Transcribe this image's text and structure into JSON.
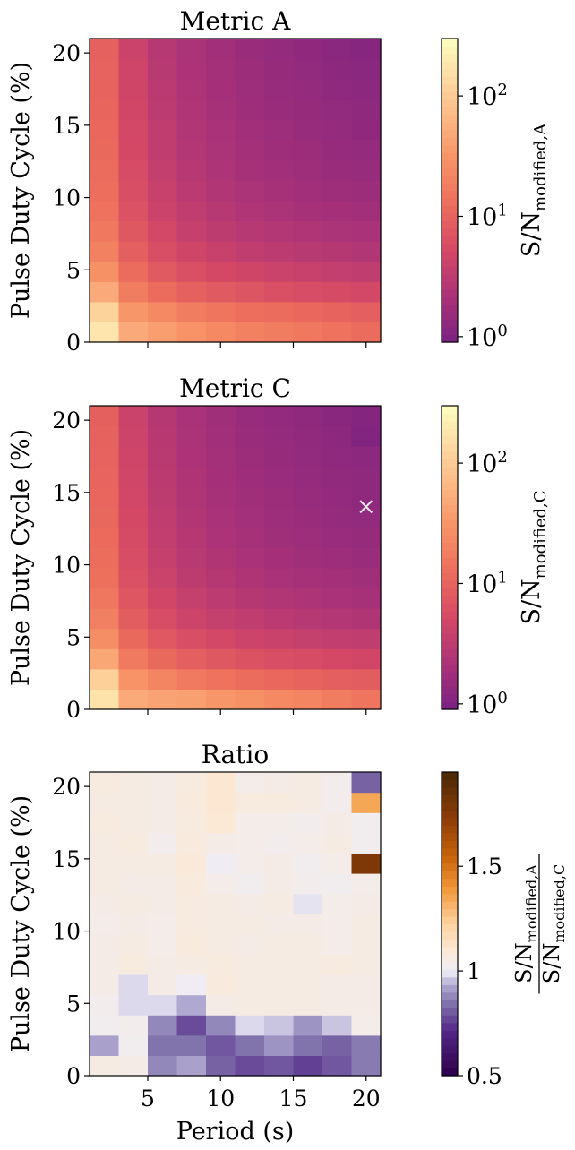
{
  "chart_data": [
    {
      "type": "heatmap",
      "title": "Metric A",
      "ylabel": "Pulse Duty Cycle (%)",
      "xlabel": "",
      "x": [
        1,
        3,
        5,
        7,
        9,
        11,
        13,
        15,
        17,
        19,
        21
      ],
      "y": [
        0,
        1.4,
        2.8,
        4.2,
        5.6,
        7,
        8.4,
        9.8,
        11.2,
        12.6,
        14,
        15.4,
        16.8,
        18.2,
        19.6,
        21
      ],
      "xlim": [
        1,
        21
      ],
      "ylim": [
        0,
        21
      ],
      "yticks": [
        0,
        5,
        10,
        15,
        20
      ],
      "xticks": [
        5,
        10,
        15,
        20
      ],
      "xticklabels_visible": false,
      "colorbar": {
        "label_main": "S/N",
        "label_sub": "modified,A",
        "scale": "log",
        "range": [
          0.9,
          300
        ],
        "ticks": [
          {
            "value": 1,
            "base": "10",
            "exp": "0"
          },
          {
            "value": 10,
            "base": "10",
            "exp": "1"
          },
          {
            "value": 100,
            "base": "10",
            "exp": "2"
          }
        ],
        "colormap": "magma"
      },
      "z": [
        [
          180,
          50,
          38,
          30,
          24,
          20,
          18,
          16,
          14,
          12
        ],
        [
          120,
          32,
          24,
          18,
          15,
          13,
          12,
          11,
          10,
          9
        ],
        [
          50,
          18,
          12,
          9.5,
          8,
          7,
          6.2,
          5.8,
          5.4,
          5
        ],
        [
          28,
          12,
          8,
          6.2,
          5.2,
          4.6,
          4.2,
          3.9,
          3.6,
          3.4
        ],
        [
          20,
          9,
          6,
          4.6,
          3.9,
          3.4,
          3.1,
          2.9,
          2.7,
          2.5
        ],
        [
          16,
          7.5,
          5,
          3.8,
          3.2,
          2.8,
          2.6,
          2.4,
          2.2,
          2.1
        ],
        [
          14,
          6.5,
          4.3,
          3.3,
          2.8,
          2.4,
          2.2,
          2.05,
          1.95,
          1.85
        ],
        [
          13,
          6,
          3.9,
          3,
          2.5,
          2.2,
          2,
          1.85,
          1.75,
          1.65
        ],
        [
          12,
          5.5,
          3.6,
          2.8,
          2.3,
          2.05,
          1.85,
          1.75,
          1.6,
          1.55
        ],
        [
          11.5,
          5.2,
          3.4,
          2.6,
          2.2,
          1.9,
          1.75,
          1.65,
          1.5,
          1.45
        ],
        [
          11,
          5,
          3.3,
          2.5,
          2.1,
          1.85,
          1.7,
          1.55,
          1.45,
          1.35
        ],
        [
          10.5,
          4.8,
          3.1,
          2.4,
          2,
          1.75,
          1.6,
          1.5,
          1.4,
          1.3
        ],
        [
          10,
          4.6,
          3,
          2.3,
          1.95,
          1.7,
          1.55,
          1.45,
          1.3,
          1.25
        ],
        [
          9.8,
          4.5,
          2.9,
          2.25,
          1.9,
          1.65,
          1.5,
          1.4,
          1.25,
          1.2
        ],
        [
          9.5,
          4.3,
          2.8,
          2.2,
          1.85,
          1.6,
          1.45,
          1.35,
          1.2,
          1.12
        ]
      ]
    },
    {
      "type": "heatmap",
      "title": "Metric C",
      "ylabel": "Pulse Duty Cycle (%)",
      "xlabel": "",
      "x": [
        1,
        3,
        5,
        7,
        9,
        11,
        13,
        15,
        17,
        19,
        21
      ],
      "y": [
        0,
        1.4,
        2.8,
        4.2,
        5.6,
        7,
        8.4,
        9.8,
        11.2,
        12.6,
        14,
        15.4,
        16.8,
        18.2,
        19.6,
        21
      ],
      "xlim": [
        1,
        21
      ],
      "ylim": [
        0,
        21
      ],
      "yticks": [
        0,
        5,
        10,
        15,
        20
      ],
      "xticks": [
        5,
        10,
        15,
        20
      ],
      "xticklabels_visible": false,
      "marker": {
        "symbol": "×",
        "x": 20,
        "y": 14
      },
      "colorbar": {
        "label_main": "S/N",
        "label_sub": "modified,C",
        "scale": "log",
        "range": [
          0.9,
          300
        ],
        "ticks": [
          {
            "value": 1,
            "base": "10",
            "exp": "0"
          },
          {
            "value": 10,
            "base": "10",
            "exp": "1"
          },
          {
            "value": 100,
            "base": "10",
            "exp": "2"
          }
        ],
        "colormap": "magma"
      },
      "z": [
        [
          170,
          48,
          42,
          40,
          32,
          28,
          24,
          22,
          18,
          15
        ],
        [
          110,
          30,
          22,
          17,
          14,
          12,
          11,
          10,
          9,
          8.5
        ],
        [
          46,
          17,
          11.5,
          9,
          7.5,
          6.6,
          6,
          5.6,
          5.2,
          4.8
        ],
        [
          26,
          11.5,
          7.6,
          6,
          5,
          4.4,
          4,
          3.7,
          3.5,
          3.3
        ],
        [
          19,
          8.6,
          5.8,
          4.4,
          3.7,
          3.3,
          3,
          2.8,
          2.6,
          2.45
        ],
        [
          15.5,
          7.2,
          4.8,
          3.7,
          3.1,
          2.7,
          2.5,
          2.3,
          2.15,
          2.05
        ],
        [
          13.5,
          6.3,
          4.2,
          3.2,
          2.7,
          2.35,
          2.15,
          2,
          1.9,
          1.8
        ],
        [
          12.5,
          5.8,
          3.8,
          2.9,
          2.45,
          2.15,
          1.95,
          1.8,
          1.7,
          1.6
        ],
        [
          11.8,
          5.4,
          3.5,
          2.7,
          2.25,
          2,
          1.8,
          1.7,
          1.58,
          1.5
        ],
        [
          11.2,
          5.1,
          3.3,
          2.55,
          2.15,
          1.88,
          1.7,
          1.6,
          1.48,
          1.4
        ],
        [
          10.7,
          4.9,
          3.2,
          2.45,
          2.05,
          1.8,
          1.65,
          1.52,
          1.42,
          1.3
        ],
        [
          10.3,
          4.7,
          3.05,
          2.35,
          1.97,
          1.72,
          1.57,
          1.46,
          1.36,
          1.3
        ],
        [
          9.8,
          4.5,
          2.95,
          2.25,
          1.9,
          1.66,
          1.5,
          1.4,
          1.3,
          1.25
        ],
        [
          9.6,
          4.4,
          2.85,
          2.2,
          1.85,
          1.6,
          1.46,
          1.36,
          1.25,
          1.05
        ],
        [
          9.3,
          4.2,
          2.75,
          2.15,
          1.8,
          1.56,
          1.42,
          1.32,
          1.18,
          1.08
        ]
      ]
    },
    {
      "type": "heatmap",
      "title": "Ratio",
      "ylabel": "Pulse Duty Cycle (%)",
      "xlabel": "Period (s)",
      "x": [
        1,
        3,
        5,
        7,
        9,
        11,
        13,
        15,
        17,
        19,
        21
      ],
      "y": [
        0,
        1.4,
        2.8,
        4.2,
        5.6,
        7,
        8.4,
        9.8,
        11.2,
        12.6,
        14,
        15.4,
        16.8,
        18.2,
        19.6,
        21
      ],
      "xlim": [
        1,
        21
      ],
      "ylim": [
        0,
        21
      ],
      "yticks": [
        0,
        5,
        10,
        15,
        20
      ],
      "xticks": [
        5,
        10,
        15,
        20
      ],
      "xticklabels_visible": true,
      "colorbar": {
        "numerator_main": "S/N",
        "numerator_sub": "modified,A",
        "denominator_main": "S/N",
        "denominator_sub": "modified,C",
        "scale": "linear",
        "range": [
          0.5,
          1.95
        ],
        "ticks": [
          {
            "value": 0.5,
            "label": "0.5"
          },
          {
            "value": 1,
            "label": "1"
          },
          {
            "value": 1.5,
            "label": "1.5"
          }
        ],
        "colormap": "PuOr_r"
      },
      "z": [
        [
          1.06,
          1.05,
          0.88,
          0.92,
          0.82,
          0.78,
          0.8,
          0.76,
          0.8,
          0.86
        ],
        [
          0.92,
          1.02,
          0.85,
          0.85,
          0.8,
          0.85,
          0.9,
          0.85,
          0.82,
          0.86
        ],
        [
          1.02,
          1.03,
          0.88,
          0.78,
          0.88,
          0.98,
          0.96,
          0.9,
          0.96,
          1.04
        ],
        [
          1.03,
          0.98,
          0.98,
          0.93,
          1.05,
          1.06,
          1.06,
          1.06,
          1.05,
          1.05
        ],
        [
          1.05,
          0.98,
          1.05,
          1.01,
          1.08,
          1.06,
          1.06,
          1.06,
          1.05,
          1.05
        ],
        [
          1.05,
          1.07,
          1.05,
          1.06,
          1.07,
          1.06,
          1.06,
          1.06,
          1.07,
          1.06
        ],
        [
          1.05,
          1.06,
          1.04,
          1.08,
          1.06,
          1.05,
          1.06,
          1.06,
          1.04,
          1.06
        ],
        [
          1.04,
          1.05,
          1.04,
          1.07,
          1.06,
          1.06,
          1.05,
          1.05,
          1.04,
          1.06
        ],
        [
          1.05,
          1.06,
          1.05,
          1.07,
          1.06,
          1.05,
          1.06,
          0.99,
          1.04,
          1.05
        ],
        [
          1.06,
          1.05,
          1.05,
          1.08,
          1.04,
          1.02,
          1.05,
          1.03,
          1.02,
          1.04
        ],
        [
          1.06,
          1.06,
          1.06,
          1.09,
          1.01,
          1.04,
          1.05,
          1.02,
          1.04,
          1.78
        ],
        [
          1.06,
          1.07,
          1.03,
          1.08,
          1.05,
          1.04,
          1.03,
          1.04,
          1.06,
          1.02
        ],
        [
          1.07,
          1.06,
          1.05,
          1.07,
          1.1,
          1.04,
          1.04,
          1.03,
          1.05,
          1.02
        ],
        [
          1.06,
          1.06,
          1.05,
          1.08,
          1.11,
          1.07,
          1.07,
          1.06,
          1.03,
          1.35
        ],
        [
          1.07,
          1.06,
          1.05,
          1.07,
          1.11,
          1.04,
          1.05,
          1.06,
          1.03,
          0.82
        ]
      ]
    }
  ]
}
